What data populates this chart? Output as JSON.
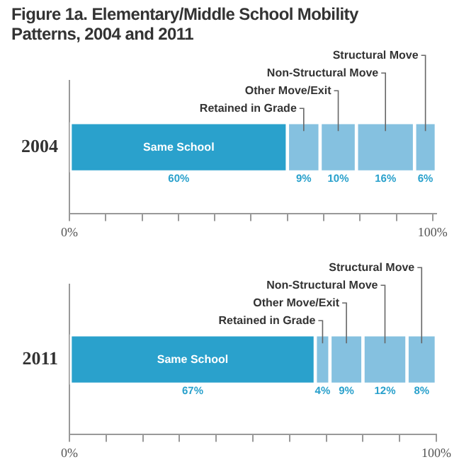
{
  "chart_data": [
    {
      "type": "bar",
      "title": "Figure 1a. Elementary/Middle School Mobility Patterns, 2004 and 2011",
      "orientation": "horizontal",
      "stacked": true,
      "grid": false,
      "categories": [
        "2004"
      ],
      "series": [
        {
          "name": "Same School",
          "color": "#2aa1cc",
          "values": [
            60
          ],
          "value_labels": [
            "60%"
          ]
        },
        {
          "name": "Retained in Grade",
          "color": "#85c1e0",
          "values": [
            9
          ],
          "value_labels": [
            "9%"
          ]
        },
        {
          "name": "Other Move/Exit",
          "color": "#85c1e0",
          "values": [
            10
          ],
          "value_labels": [
            "10%"
          ]
        },
        {
          "name": "Non-Structural Move",
          "color": "#85c1e0",
          "values": [
            16
          ],
          "value_labels": [
            "16%"
          ]
        },
        {
          "name": "Structural Move",
          "color": "#85c1e0",
          "values": [
            6
          ],
          "value_labels": [
            "6%"
          ]
        }
      ],
      "xlim": [
        0,
        101
      ],
      "xticks": [
        {
          "value": 0,
          "label": "0%"
        },
        {
          "value": 10,
          "label": null
        },
        {
          "value": 20,
          "label": null
        },
        {
          "value": 30,
          "label": null
        },
        {
          "value": 40,
          "label": null
        },
        {
          "value": 50,
          "label": null
        },
        {
          "value": 60,
          "label": null
        },
        {
          "value": 70,
          "label": null
        },
        {
          "value": 80,
          "label": null
        },
        {
          "value": 90,
          "label": null
        },
        {
          "value": 100,
          "label": "100%"
        }
      ]
    },
    {
      "type": "bar",
      "orientation": "horizontal",
      "stacked": true,
      "grid": false,
      "categories": [
        "2011"
      ],
      "series": [
        {
          "name": "Same School",
          "color": "#2aa1cc",
          "values": [
            67
          ],
          "value_labels": [
            "67%"
          ]
        },
        {
          "name": "Retained in Grade",
          "color": "#85c1e0",
          "values": [
            4
          ],
          "value_labels": [
            "4%"
          ]
        },
        {
          "name": "Other Move/Exit",
          "color": "#85c1e0",
          "values": [
            9
          ],
          "value_labels": [
            "9%"
          ]
        },
        {
          "name": "Non-Structural Move",
          "color": "#85c1e0",
          "values": [
            12
          ],
          "value_labels": [
            "12%"
          ]
        },
        {
          "name": "Structural Move",
          "color": "#85c1e0",
          "values": [
            8
          ],
          "value_labels": [
            "8%"
          ]
        }
      ],
      "xlim": [
        0,
        100
      ],
      "xticks": [
        {
          "value": 0,
          "label": "0%"
        },
        {
          "value": 10,
          "label": null
        },
        {
          "value": 20,
          "label": null
        },
        {
          "value": 30,
          "label": null
        },
        {
          "value": 40,
          "label": null
        },
        {
          "value": 50,
          "label": null
        },
        {
          "value": 60,
          "label": null
        },
        {
          "value": 70,
          "label": null
        },
        {
          "value": 80,
          "label": null
        },
        {
          "value": 90,
          "label": null
        },
        {
          "value": 100,
          "label": "100%"
        }
      ]
    }
  ]
}
